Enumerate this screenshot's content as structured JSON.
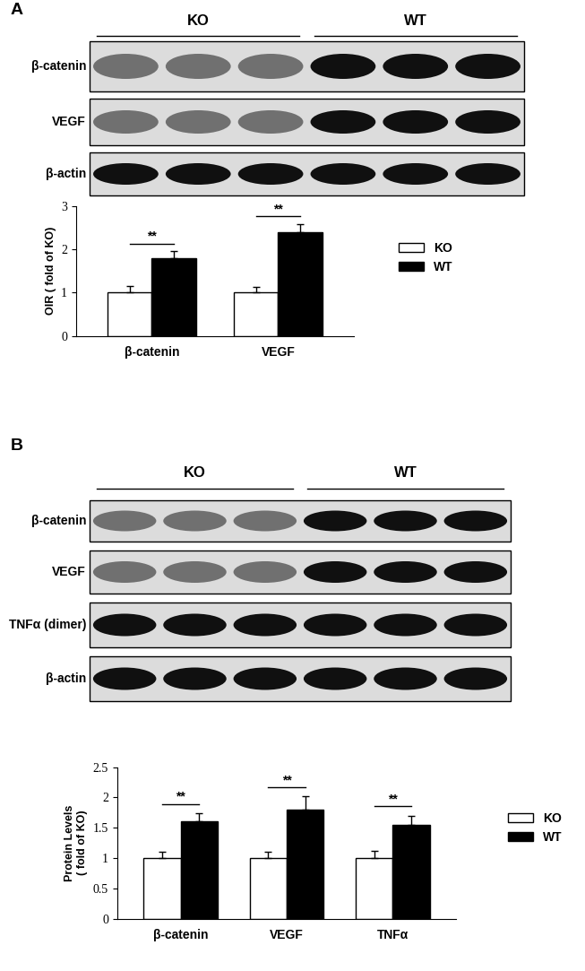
{
  "chart_data": [
    {
      "type": "bar",
      "panel": "A",
      "blot": {
        "groups": [
          "KO",
          "WT"
        ],
        "rows": [
          "β-catenin",
          "VEGF",
          "β-actin"
        ]
      },
      "categories": [
        "β-catenin",
        "VEGF"
      ],
      "series": [
        {
          "name": "KO",
          "color": "#ffffff",
          "values": [
            1,
            1
          ],
          "errors": [
            0.15,
            0.13
          ]
        },
        {
          "name": "WT",
          "color": "#000000",
          "values": [
            1.8,
            2.4
          ],
          "errors": [
            0.15,
            0.18
          ]
        }
      ],
      "ylabel": "OIR ( fold of KO)",
      "ylim": [
        0,
        3
      ],
      "yticks": [
        0,
        1,
        2,
        3
      ],
      "legend": "right",
      "annotations": [
        "**",
        "**"
      ]
    },
    {
      "type": "bar",
      "panel": "B",
      "blot": {
        "groups": [
          "KO",
          "WT"
        ],
        "rows": [
          "β-catenin",
          "VEGF",
          "TNFα (dimer)",
          "β-actin"
        ]
      },
      "categories": [
        "β-catenin",
        "VEGF",
        "TNFα"
      ],
      "series": [
        {
          "name": "KO",
          "color": "#ffffff",
          "values": [
            1,
            1,
            1
          ],
          "errors": [
            0.1,
            0.1,
            0.12
          ]
        },
        {
          "name": "WT",
          "color": "#000000",
          "values": [
            1.6,
            1.8,
            1.55
          ],
          "errors": [
            0.14,
            0.22,
            0.15
          ]
        }
      ],
      "ylabel": "Protein Levels\n( fold of KO)",
      "ylim": [
        0,
        2.5
      ],
      "yticks": [
        0,
        0.5,
        1,
        1.5,
        2,
        2.5
      ],
      "legend": "right",
      "annotations": [
        "**",
        "**",
        "**"
      ]
    }
  ]
}
